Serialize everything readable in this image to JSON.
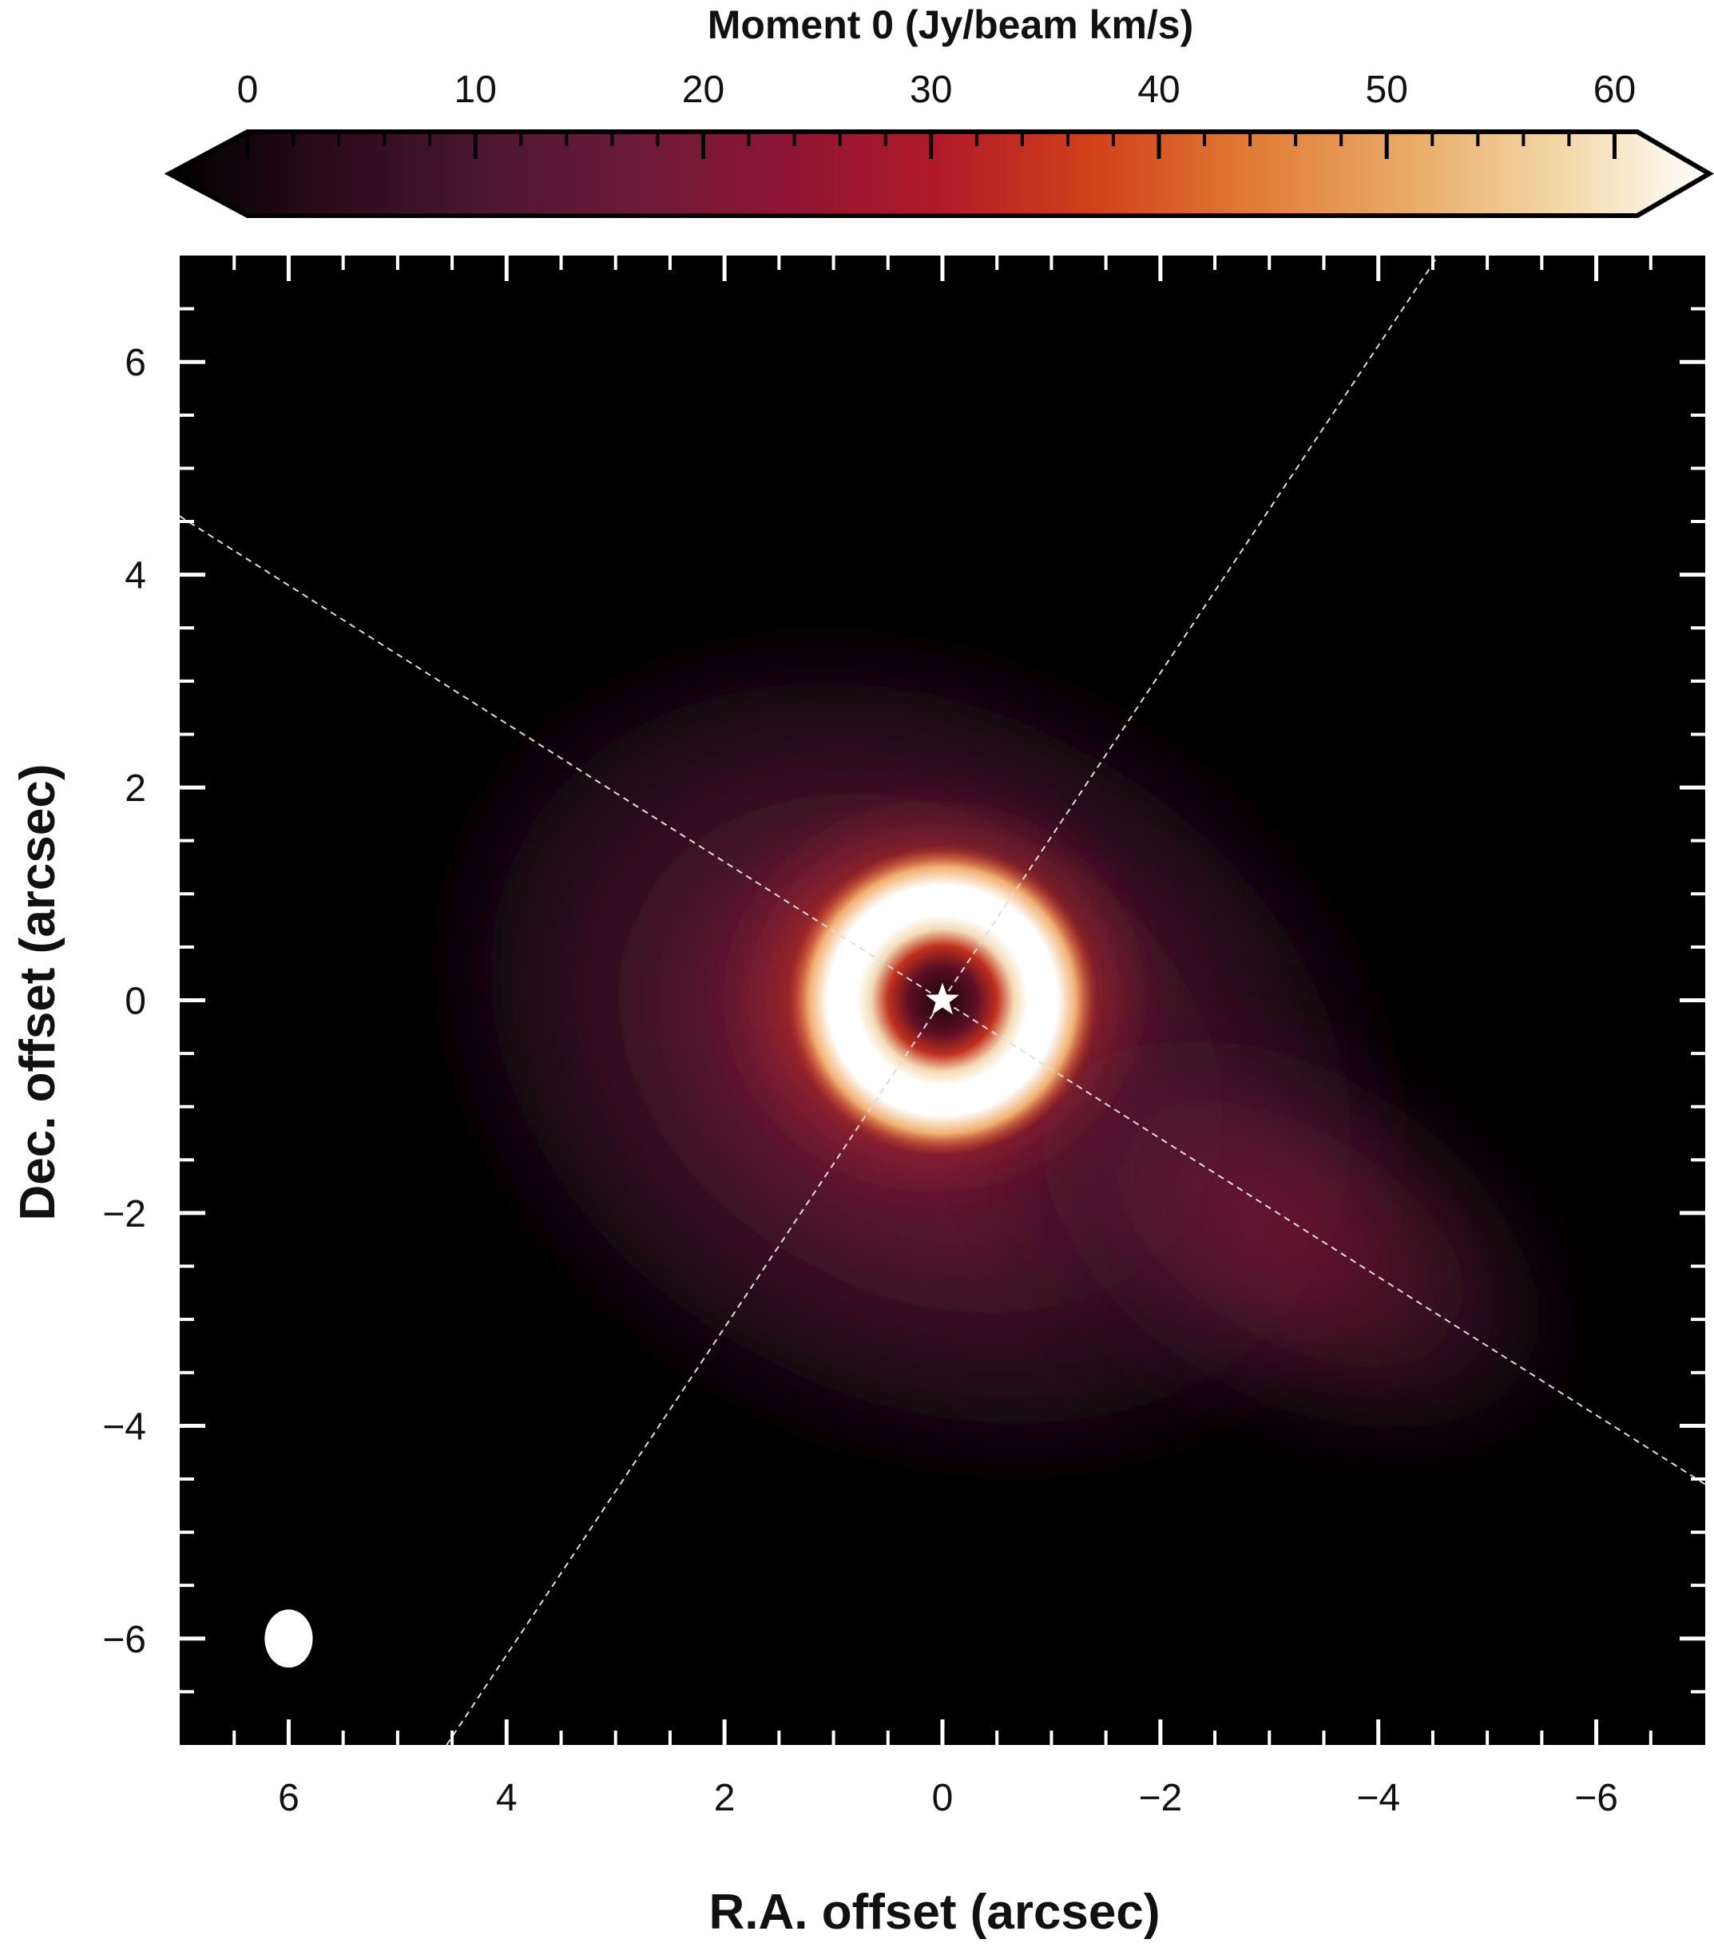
{
  "chart_data": {
    "type": "heatmap",
    "title": "",
    "colorbar": {
      "label": "Moment 0 (Jy/beam km/s)",
      "range": [
        0,
        61
      ],
      "ticks": [
        0,
        10,
        20,
        30,
        40,
        50,
        60
      ],
      "tick_labels": [
        "0",
        "10",
        "20",
        "30",
        "40",
        "50",
        "60"
      ],
      "extend": "both",
      "colormap": [
        "#000000",
        "#2a0a19",
        "#4a1630",
        "#6b1a38",
        "#8e1535",
        "#b11a28",
        "#d2401a",
        "#e07a35",
        "#e9a865",
        "#f2d6a4",
        "#ffffff"
      ]
    },
    "xlabel": "R.A. offset (arcsec)",
    "ylabel": "Dec. offset (arcsec)",
    "xlim": [
      7,
      -7
    ],
    "ylim": [
      -7,
      7
    ],
    "xticks": [
      6,
      4,
      2,
      0,
      -2,
      -4,
      -6
    ],
    "xtick_labels": [
      "6",
      "4",
      "2",
      "0",
      "−2",
      "−4",
      "−6"
    ],
    "yticks": [
      6,
      4,
      2,
      0,
      -2,
      -4,
      -6
    ],
    "ytick_labels": [
      "6",
      "4",
      "2",
      "0",
      "−2",
      "−4",
      "−6"
    ],
    "image_features": {
      "star_marker": {
        "x": 0,
        "y": 0
      },
      "ring": {
        "center_x": 0,
        "center_y": 0,
        "radius_arcsec": 0.75,
        "peak_value": 61
      },
      "central_cavity_value": 5,
      "extended_emission": {
        "center_x": 0.2,
        "center_y": -0.5,
        "extent_arcsec": 5,
        "typical_value": 12
      },
      "beam": {
        "x": 6.0,
        "y": -6.0,
        "major_arcsec": 0.26,
        "minor_arcsec": 0.21
      }
    },
    "reference_lines": [
      {
        "style": "dashed",
        "color": "#dddddd",
        "from": [
          7,
          4.55
        ],
        "to": [
          -7,
          -4.55
        ]
      },
      {
        "style": "dashed",
        "color": "#dddddd",
        "from": [
          4.55,
          -7
        ],
        "to": [
          -4.55,
          7
        ]
      }
    ]
  }
}
